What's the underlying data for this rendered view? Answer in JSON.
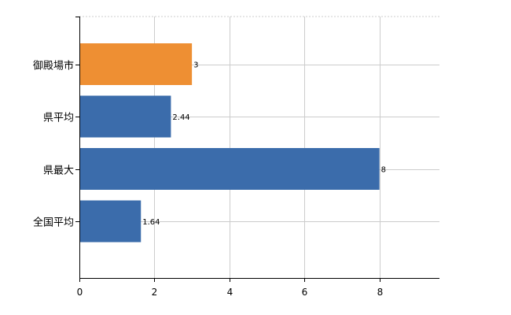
{
  "chart_data": {
    "type": "bar",
    "orientation": "horizontal",
    "categories": [
      "御殿場市",
      "県平均",
      "県最大",
      "全国平均"
    ],
    "values": [
      3,
      2.44,
      8,
      1.64
    ],
    "value_labels": [
      "3",
      "2.44",
      "8",
      "1.64"
    ],
    "bar_colors": [
      "#ee8f33",
      "#3b6cab",
      "#3b6cab",
      "#3b6cab"
    ],
    "highlight_color": "#ee8f33",
    "default_color": "#3b6cab",
    "title": "",
    "xlabel": "",
    "ylabel": "",
    "xlim": [
      0,
      9.6
    ],
    "x_ticks": [
      0,
      2,
      4,
      6,
      8
    ],
    "x_tick_labels": [
      "0",
      "2",
      "4",
      "6",
      "8"
    ],
    "grid": true,
    "legend": "none"
  }
}
